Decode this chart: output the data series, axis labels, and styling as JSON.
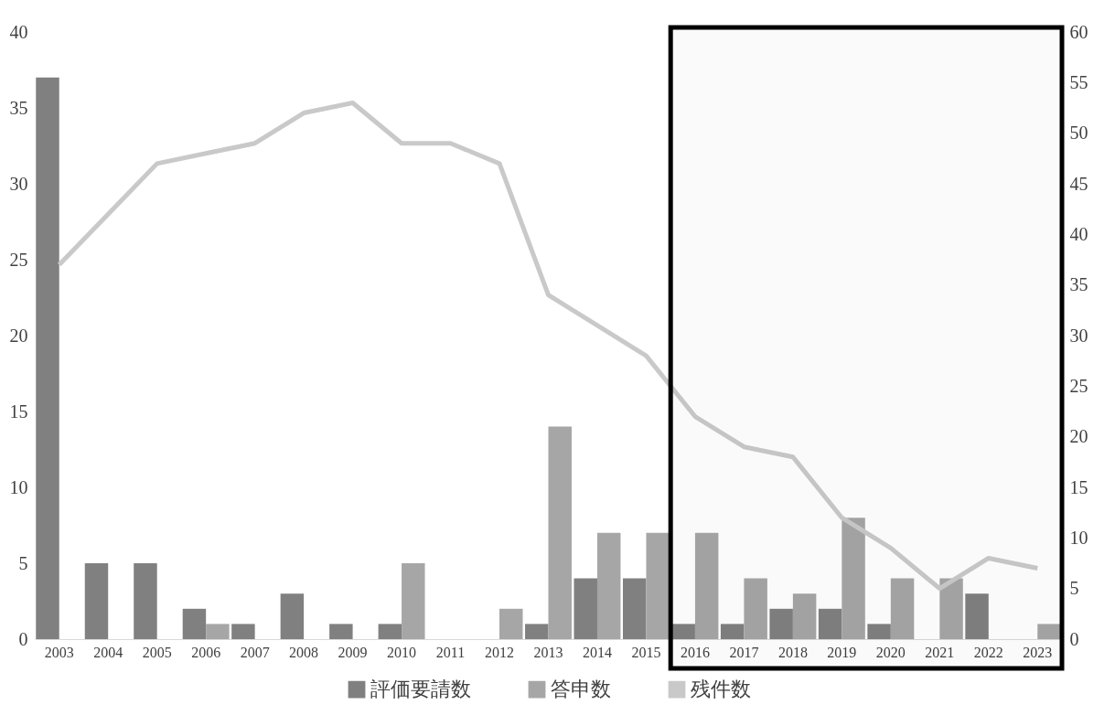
{
  "chart_data": {
    "type": "bar",
    "categories": [
      "2003",
      "2004",
      "2005",
      "2006",
      "2007",
      "2008",
      "2009",
      "2010",
      "2011",
      "2012",
      "2013",
      "2014",
      "2015",
      "2016",
      "2017",
      "2018",
      "2019",
      "2020",
      "2021",
      "2022",
      "2023"
    ],
    "series": [
      {
        "name": "評価要請数",
        "color": "#808080",
        "values": [
          37,
          5,
          5,
          2,
          1,
          3,
          1,
          1,
          0,
          0,
          1,
          4,
          4,
          1,
          1,
          2,
          2,
          1,
          0,
          3,
          0
        ]
      },
      {
        "name": "答申数",
        "color": "#a6a6a6",
        "values": [
          0,
          0,
          0,
          1,
          0,
          0,
          0,
          5,
          0,
          2,
          14,
          7,
          7,
          7,
          4,
          3,
          8,
          4,
          4,
          0,
          1
        ]
      },
      {
        "name": "残件数",
        "type": "line",
        "axis": "y2",
        "color": "#c9c9c9",
        "values": [
          37,
          42,
          47,
          48,
          49,
          52,
          53,
          49,
          49,
          47,
          34,
          31,
          28,
          22,
          19,
          18,
          12,
          9,
          5,
          8,
          7
        ]
      }
    ],
    "ylim": [
      0,
      40
    ],
    "yticks": [
      0,
      5,
      10,
      15,
      20,
      25,
      30,
      35,
      40
    ],
    "y2lim": [
      0,
      60
    ],
    "y2ticks": [
      0,
      5,
      10,
      15,
      20,
      25,
      30,
      35,
      40,
      45,
      50,
      55,
      60
    ],
    "bands": [
      {
        "axis": "x",
        "from": "2016",
        "to": "2023",
        "color": "#000000"
      }
    ],
    "legend": "bottom",
    "grid": false
  }
}
